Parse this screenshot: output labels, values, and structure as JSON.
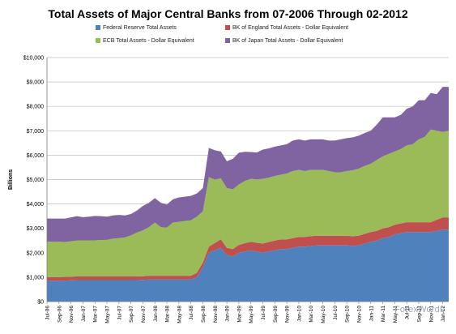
{
  "chart_data": {
    "type": "area",
    "stacked": true,
    "title": "Total Assets of Major Central Banks from 07-2006 Through 02-2012",
    "ylabel": "Billions",
    "xlabel": "",
    "ylim": [
      0,
      10000
    ],
    "yticks": [
      "$0",
      "$1,000",
      "$2,000",
      "$3,000",
      "$4,000",
      "$5,000",
      "$6,000",
      "$7,000",
      "$8,000",
      "$9,000",
      "$10,000"
    ],
    "grid": "horizontal",
    "legend_position": "top",
    "xtick_labels": [
      "Jul-06",
      "Sep-06",
      "Nov-06",
      "Jan-07",
      "Mar-07",
      "May-07",
      "Jul-07",
      "Sep-07",
      "Nov-07",
      "Jan-08",
      "Mar-08",
      "May-08",
      "Jul-08",
      "Sep-08",
      "Nov-08",
      "Jan-09",
      "Mar-09",
      "May-09",
      "Jul-09",
      "Sep-09",
      "Nov-09",
      "Jan-10",
      "Mar-10",
      "May-10",
      "Jul-10",
      "Sep-10",
      "Nov-10",
      "Jan-11",
      "Mar-11",
      "May-11",
      "Jul-11",
      "Sep-11",
      "Nov-11",
      "Jan-12"
    ],
    "x": [
      "Jul-06",
      "Aug-06",
      "Sep-06",
      "Oct-06",
      "Nov-06",
      "Dec-06",
      "Jan-07",
      "Feb-07",
      "Mar-07",
      "Apr-07",
      "May-07",
      "Jun-07",
      "Jul-07",
      "Aug-07",
      "Sep-07",
      "Oct-07",
      "Nov-07",
      "Dec-07",
      "Jan-08",
      "Feb-08",
      "Mar-08",
      "Apr-08",
      "May-08",
      "Jun-08",
      "Jul-08",
      "Aug-08",
      "Sep-08",
      "Oct-08",
      "Nov-08",
      "Dec-08",
      "Jan-09",
      "Feb-09",
      "Mar-09",
      "Apr-09",
      "May-09",
      "Jun-09",
      "Jul-09",
      "Aug-09",
      "Sep-09",
      "Oct-09",
      "Nov-09",
      "Dec-09",
      "Jan-10",
      "Feb-10",
      "Mar-10",
      "Apr-10",
      "May-10",
      "Jun-10",
      "Jul-10",
      "Aug-10",
      "Sep-10",
      "Oct-10",
      "Nov-10",
      "Dec-10",
      "Jan-11",
      "Feb-11",
      "Mar-11",
      "Apr-11",
      "May-11",
      "Jun-11",
      "Jul-11",
      "Aug-11",
      "Sep-11",
      "Oct-11",
      "Nov-11",
      "Dec-11",
      "Jan-12",
      "Feb-12"
    ],
    "series": [
      {
        "name": "Federal Reserve Total Assets",
        "color": "#4f81bd",
        "values": [
          850,
          850,
          850,
          860,
          870,
          880,
          880,
          880,
          880,
          880,
          880,
          880,
          880,
          880,
          880,
          880,
          890,
          900,
          900,
          900,
          900,
          900,
          900,
          900,
          900,
          1000,
          1400,
          2000,
          2100,
          2200,
          1900,
          1850,
          2000,
          2050,
          2100,
          2050,
          2000,
          2050,
          2100,
          2150,
          2150,
          2200,
          2250,
          2250,
          2280,
          2300,
          2300,
          2300,
          2300,
          2300,
          2300,
          2280,
          2300,
          2380,
          2450,
          2500,
          2600,
          2650,
          2750,
          2800,
          2850,
          2850,
          2850,
          2850,
          2850,
          2900,
          2950,
          2950
        ]
      },
      {
        "name": "BK of England  Total Assets - Dollar Equivalent",
        "color": "#c0504d",
        "values": [
          150,
          150,
          150,
          150,
          150,
          150,
          150,
          150,
          150,
          150,
          150,
          150,
          150,
          150,
          150,
          150,
          150,
          160,
          160,
          160,
          160,
          160,
          160,
          160,
          160,
          180,
          200,
          250,
          300,
          350,
          300,
          300,
          320,
          340,
          350,
          360,
          380,
          390,
          400,
          400,
          400,
          400,
          400,
          400,
          400,
          400,
          400,
          400,
          400,
          400,
          400,
          400,
          400,
          400,
          400,
          400,
          400,
          400,
          400,
          400,
          400,
          400,
          400,
          400,
          400,
          450,
          500,
          500
        ]
      },
      {
        "name": "ECB Total Assets - Dollar Equivalent",
        "color": "#9bbb59",
        "values": [
          1450,
          1450,
          1450,
          1430,
          1450,
          1470,
          1480,
          1480,
          1480,
          1490,
          1500,
          1550,
          1570,
          1600,
          1680,
          1800,
          1880,
          1990,
          2180,
          1990,
          1970,
          2180,
          2210,
          2240,
          2270,
          2300,
          2100,
          2850,
          2600,
          2500,
          2450,
          2450,
          2480,
          2550,
          2580,
          2600,
          2650,
          2640,
          2650,
          2650,
          2700,
          2750,
          2750,
          2700,
          2720,
          2700,
          2700,
          2650,
          2600,
          2600,
          2650,
          2700,
          2750,
          2780,
          2800,
          2900,
          2950,
          3000,
          3000,
          3050,
          3150,
          3200,
          3400,
          3500,
          3800,
          3650,
          3500,
          3550
        ]
      },
      {
        "name": "BK of Japan Total Assets - Dollar Equivalent",
        "color": "#8064a2",
        "values": [
          950,
          950,
          950,
          960,
          980,
          1000,
          950,
          970,
          1000,
          980,
          950,
          950,
          950,
          900,
          880,
          900,
          1000,
          1000,
          1000,
          1000,
          950,
          950,
          1000,
          1000,
          1000,
          950,
          950,
          1200,
          1200,
          1100,
          1100,
          1250,
          1300,
          1200,
          1100,
          1100,
          1200,
          1200,
          1200,
          1200,
          1200,
          1250,
          1250,
          1250,
          1250,
          1250,
          1250,
          1250,
          1300,
          1350,
          1350,
          1350,
          1350,
          1350,
          1350,
          1450,
          1600,
          1500,
          1400,
          1400,
          1500,
          1550,
          1600,
          1500,
          1500,
          1500,
          1850,
          1800
        ]
      }
    ]
  },
  "watermark": "ForexWords"
}
